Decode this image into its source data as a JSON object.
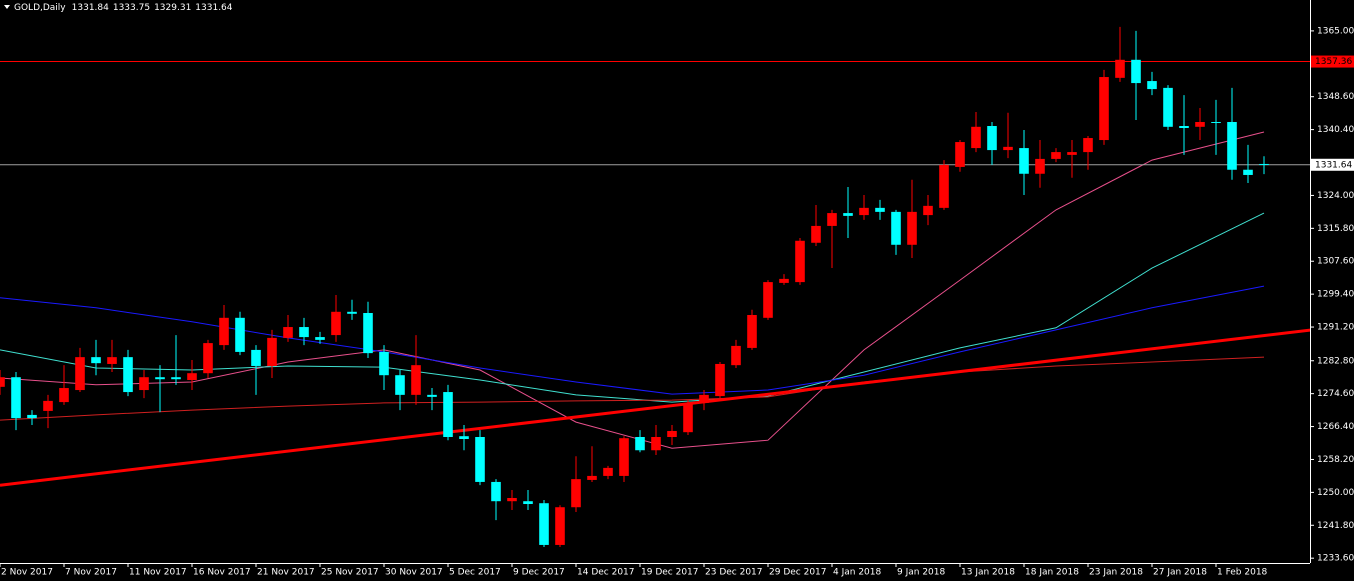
{
  "chart_data": {
    "type": "candlestick",
    "title": "GOLD,Daily",
    "categories": [
      "2 Nov 2017",
      null,
      null,
      null,
      "7 Nov 2017",
      null,
      null,
      null,
      "11 Nov 2017",
      null,
      null,
      null,
      "16 Nov 2017",
      null,
      null,
      null,
      "21 Nov 2017",
      null,
      null,
      null,
      "25 Nov 2017",
      null,
      null,
      null,
      "30 Nov 2017",
      null,
      null,
      null,
      "5 Dec 2017",
      null,
      null,
      null,
      "9 Dec 2017",
      null,
      null,
      null,
      "14 Dec 2017",
      null,
      null,
      null,
      "19 Dec 2017",
      null,
      null,
      null,
      "23 Dec 2017",
      null,
      null,
      null,
      "29 Dec 2017",
      null,
      null,
      null,
      "4 Jan 2018",
      null,
      null,
      null,
      "9 Jan 2018",
      null,
      null,
      null,
      "13 Jan 2018",
      null,
      null,
      null,
      "18 Jan 2018",
      null,
      null,
      null,
      "23 Jan 2018",
      null,
      null,
      null,
      "27 Jan 2018",
      null,
      null,
      null,
      "1 Feb 2018",
      null,
      null,
      null
    ],
    "open": [
      1276.3,
      1278.7,
      1269.3,
      1270.3,
      1272.5,
      1275.5,
      1283.7,
      1282.0,
      1283.7,
      1275.5,
      1278.7,
      1278.7,
      1278.0,
      1279.7,
      1286.7,
      1293.5,
      1285.5,
      1281.5,
      1288.5,
      1291.2,
      1288.7,
      1289.2,
      1295.0,
      1294.7,
      1285.0,
      1279.2,
      1274.3,
      1274.3,
      1275.0,
      1264.0,
      1263.8,
      1252.6,
      1247.8,
      1247.8,
      1247.3,
      1236.9,
      1246.3,
      1253.1,
      1254.1,
      1254.1,
      1263.8,
      1260.5,
      1263.8,
      1265.0,
      1272.3,
      1274.0,
      1281.7,
      1286.0,
      1293.5,
      1302.2,
      1302.4,
      1312.2,
      1316.4,
      1319.6,
      1319.1,
      1320.9,
      1319.9,
      1311.7,
      1319.1,
      1320.9,
      1331.1,
      1335.8,
      1341.3,
      1335.3,
      1335.8,
      1329.4,
      1333.1,
      1334.1,
      1334.8,
      1337.8,
      1353.3,
      1357.8,
      1352.5,
      1350.8,
      1341.3,
      1341.1,
      1342.3,
      1342.3,
      1330.4,
      1331.84
    ],
    "high": [
      1280.5,
      1280.0,
      1270.5,
      1274.3,
      1281.7,
      1286.0,
      1288.0,
      1288.0,
      1285.5,
      1280.5,
      1281.7,
      1289.2,
      1283.0,
      1288.0,
      1296.7,
      1295.0,
      1286.7,
      1290.5,
      1294.2,
      1293.5,
      1290.0,
      1299.2,
      1298.0,
      1297.5,
      1286.7,
      1280.5,
      1289.2,
      1276.0,
      1276.8,
      1266.8,
      1265.5,
      1253.3,
      1250.6,
      1250.6,
      1248.1,
      1246.8,
      1259.0,
      1261.5,
      1256.6,
      1264.0,
      1265.5,
      1266.8,
      1266.8,
      1273.0,
      1275.5,
      1282.5,
      1288.0,
      1295.5,
      1302.9,
      1304.4,
      1313.4,
      1321.6,
      1320.4,
      1326.1,
      1324.1,
      1322.9,
      1320.4,
      1327.9,
      1324.1,
      1332.8,
      1337.8,
      1344.8,
      1342.3,
      1344.6,
      1340.3,
      1337.8,
      1335.8,
      1337.8,
      1338.8,
      1355.3,
      1366.0,
      1365.0,
      1354.8,
      1351.5,
      1349.0,
      1345.8,
      1347.8,
      1350.8,
      1336.6,
      1333.75
    ],
    "low": [
      1274.3,
      1265.5,
      1266.8,
      1266.0,
      1271.8,
      1275.0,
      1279.2,
      1280.0,
      1274.0,
      1273.5,
      1270.0,
      1276.8,
      1275.5,
      1278.5,
      1285.5,
      1284.2,
      1274.3,
      1278.5,
      1287.5,
      1286.7,
      1287.0,
      1287.5,
      1293.0,
      1283.5,
      1275.5,
      1270.5,
      1271.8,
      1270.5,
      1263.0,
      1260.5,
      1251.8,
      1243.1,
      1245.6,
      1245.6,
      1236.4,
      1236.4,
      1245.1,
      1252.6,
      1253.3,
      1252.6,
      1260.0,
      1259.3,
      1261.8,
      1264.3,
      1270.5,
      1273.5,
      1281.0,
      1285.5,
      1293.0,
      1301.7,
      1301.7,
      1311.4,
      1305.9,
      1313.4,
      1317.9,
      1317.9,
      1309.2,
      1308.4,
      1316.6,
      1320.4,
      1329.9,
      1334.8,
      1331.6,
      1333.3,
      1324.1,
      1325.9,
      1332.3,
      1328.4,
      1330.4,
      1336.6,
      1352.3,
      1342.8,
      1349.0,
      1340.3,
      1334.1,
      1337.8,
      1334.1,
      1327.9,
      1327.1,
      1329.31
    ],
    "close": [
      1278.7,
      1268.5,
      1268.5,
      1272.8,
      1276.0,
      1283.7,
      1282.2,
      1283.7,
      1275.0,
      1278.7,
      1278.2,
      1278.2,
      1279.7,
      1287.2,
      1293.5,
      1285.0,
      1281.5,
      1288.5,
      1291.2,
      1288.7,
      1288.0,
      1295.0,
      1294.5,
      1284.7,
      1279.2,
      1274.3,
      1281.7,
      1273.8,
      1263.8,
      1263.3,
      1252.6,
      1247.8,
      1248.6,
      1247.1,
      1236.9,
      1246.3,
      1253.3,
      1254.1,
      1256.1,
      1263.5,
      1260.5,
      1263.8,
      1265.3,
      1272.3,
      1274.3,
      1282.0,
      1286.5,
      1294.2,
      1302.4,
      1303.2,
      1312.7,
      1316.4,
      1319.6,
      1318.9,
      1320.9,
      1319.9,
      1311.7,
      1319.9,
      1321.4,
      1331.6,
      1337.3,
      1341.1,
      1335.3,
      1336.1,
      1329.4,
      1333.1,
      1334.8,
      1334.8,
      1338.3,
      1353.5,
      1357.8,
      1352.0,
      1350.5,
      1341.1,
      1340.8,
      1342.3,
      1342.1,
      1330.4,
      1329.1,
      1331.64
    ],
    "up_color": "#ff0000",
    "down_color": "#00ffff",
    "lines": [
      {
        "color": "#e8508c",
        "x": [
          0,
          6,
          12,
          18,
          24,
          30,
          36,
          42,
          48,
          54,
          60,
          66,
          72,
          79
        ],
        "values": [
          1278.5,
          1276.8,
          1277.5,
          1282.5,
          1285.5,
          1280.5,
          1267.5,
          1261.0,
          1263.0,
          1285.5,
          1302.9,
          1320.4,
          1332.8,
          1339.8
        ]
      },
      {
        "color": "#40e0d0",
        "x": [
          0,
          6,
          12,
          18,
          24,
          30,
          36,
          42,
          48,
          54,
          60,
          66,
          72,
          79
        ],
        "values": [
          1285.5,
          1281.0,
          1280.5,
          1281.5,
          1281.2,
          1278.0,
          1274.3,
          1272.5,
          1274.0,
          1280.0,
          1286.0,
          1291.0,
          1305.9,
          1319.6
        ]
      },
      {
        "color": "#1a1aff",
        "x": [
          0,
          6,
          12,
          18,
          24,
          30,
          36,
          42,
          48,
          54,
          60,
          66,
          72,
          79
        ],
        "values": [
          1298.5,
          1296.0,
          1292.5,
          1288.5,
          1285.0,
          1281.0,
          1277.5,
          1274.5,
          1275.5,
          1279.2,
          1285.0,
          1290.5,
          1296.0,
          1301.4
        ]
      },
      {
        "color": "#d02020",
        "x": [
          0,
          6,
          12,
          18,
          24,
          30,
          36,
          42,
          48,
          54,
          60,
          66,
          72,
          79
        ],
        "values": [
          1268.0,
          1269.3,
          1270.5,
          1271.5,
          1272.3,
          1272.5,
          1272.8,
          1273.0,
          1273.8,
          1277.5,
          1280.0,
          1281.5,
          1282.5,
          1283.7
        ]
      }
    ],
    "trendline": {
      "color": "#ff0000",
      "x": [
        0,
        82
      ],
      "values": [
        1251.8,
        1290.5
      ]
    },
    "hline": {
      "color": "#ff0000",
      "value": 1357.36
    },
    "price_line_color": "#a0a0a0",
    "xlim": [
      0,
      81.875
    ],
    "ylim": [
      1232.4,
      1372.7
    ],
    "yticks": [
      {
        "value": 1365,
        "label": "1365.00"
      },
      {
        "value": 1348.6,
        "label": "1348.60"
      },
      {
        "value": 1340.4,
        "label": "1340.40"
      },
      {
        "value": 1324,
        "label": "1324.00"
      },
      {
        "value": 1315.8,
        "label": "1315.80"
      },
      {
        "value": 1307.6,
        "label": "1307.60"
      },
      {
        "value": 1299.4,
        "label": "1299.40"
      },
      {
        "value": 1291.2,
        "label": "1291.20"
      },
      {
        "value": 1282.8,
        "label": "1282.80"
      },
      {
        "value": 1274.6,
        "label": "1274.60"
      },
      {
        "value": 1266.4,
        "label": "1266.40"
      },
      {
        "value": 1258.2,
        "label": "1258.20"
      },
      {
        "value": 1250,
        "label": "1250.00"
      },
      {
        "value": 1241.8,
        "label": "1241.80"
      },
      {
        "value": 1233.6,
        "label": "1233.60"
      }
    ]
  }
}
